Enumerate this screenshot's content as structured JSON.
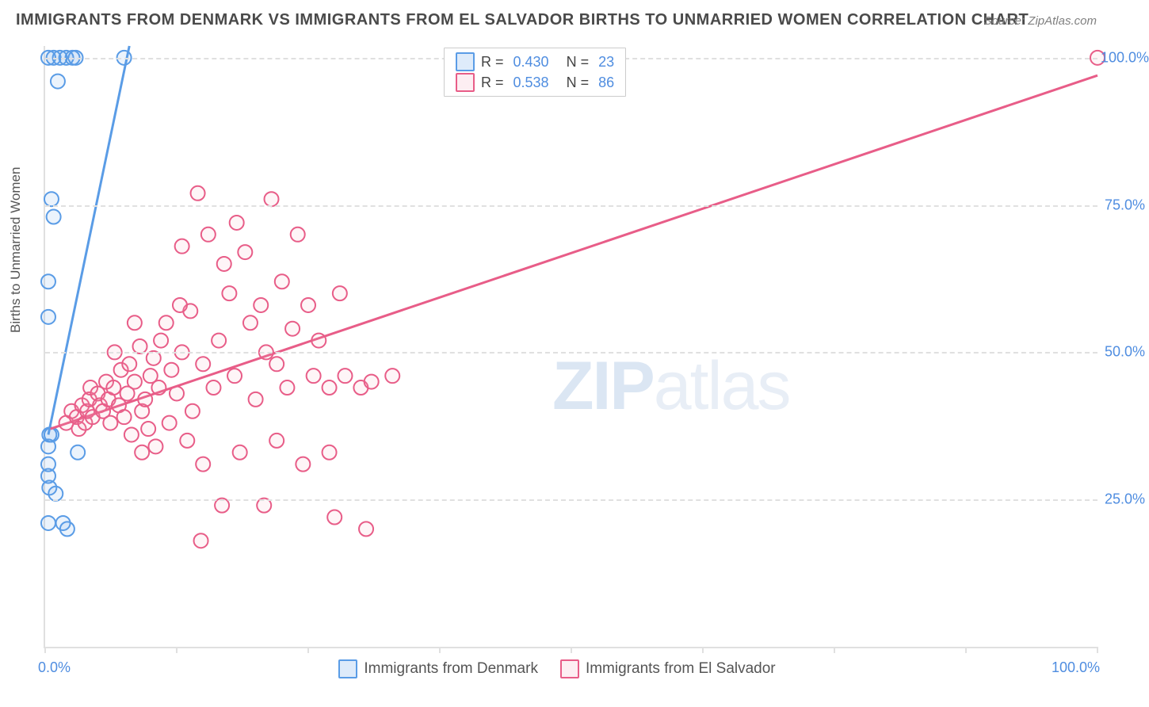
{
  "title": "IMMIGRANTS FROM DENMARK VS IMMIGRANTS FROM EL SALVADOR BIRTHS TO UNMARRIED WOMEN CORRELATION CHART",
  "source": "Source: ZipAtlas.com",
  "ylabel": "Births to Unmarried Women",
  "watermark_bold": "ZIP",
  "watermark_light": "atlas",
  "chart": {
    "type": "scatter",
    "xlim": [
      0,
      100
    ],
    "ylim": [
      0,
      102
    ],
    "xtick_positions": [
      0,
      12.5,
      25,
      37.5,
      50,
      62.5,
      75,
      87.5,
      100
    ],
    "ytick_labels": [
      {
        "v": 25,
        "t": "25.0%"
      },
      {
        "v": 50,
        "t": "50.0%"
      },
      {
        "v": 75,
        "t": "75.0%"
      },
      {
        "v": 100,
        "t": "100.0%"
      }
    ],
    "xaxis_label_min": "0.0%",
    "xaxis_label_max": "100.0%",
    "grid_color": "#e0e0e0",
    "background_color": "#ffffff",
    "marker_radius": 9,
    "series": [
      {
        "name": "Immigrants from Denmark",
        "color_stroke": "#5a9ce6",
        "color_fill": "#5a9ce6",
        "R": "0.430",
        "N": "23",
        "trend": {
          "x1": 0.3,
          "y1": 36,
          "x2": 8.0,
          "y2": 102
        },
        "points": [
          [
            0.3,
            100
          ],
          [
            0.8,
            100
          ],
          [
            1.4,
            100
          ],
          [
            2.0,
            100
          ],
          [
            2.6,
            100
          ],
          [
            2.9,
            100
          ],
          [
            7.5,
            100
          ],
          [
            1.2,
            96
          ],
          [
            0.6,
            76
          ],
          [
            0.8,
            73
          ],
          [
            0.3,
            62
          ],
          [
            0.3,
            56
          ],
          [
            0.4,
            36
          ],
          [
            0.3,
            34
          ],
          [
            3.1,
            33
          ],
          [
            0.3,
            31
          ],
          [
            0.3,
            29
          ],
          [
            0.4,
            27
          ],
          [
            1.0,
            26
          ],
          [
            0.3,
            21
          ],
          [
            1.7,
            21
          ],
          [
            2.1,
            20
          ],
          [
            0.6,
            36
          ]
        ]
      },
      {
        "name": "Immigrants from El Salvador",
        "color_stroke": "#e85d88",
        "color_fill": "#f6a9bf",
        "R": "0.538",
        "N": "86",
        "trend": {
          "x1": 0.5,
          "y1": 37,
          "x2": 100,
          "y2": 97
        },
        "points": [
          [
            100,
            100
          ],
          [
            2,
            38
          ],
          [
            2.5,
            40
          ],
          [
            3,
            39
          ],
          [
            3.2,
            37
          ],
          [
            3.5,
            41
          ],
          [
            3.8,
            38
          ],
          [
            4,
            40
          ],
          [
            4.2,
            42
          ],
          [
            4.3,
            44
          ],
          [
            4.5,
            39
          ],
          [
            5,
            43
          ],
          [
            5.2,
            41
          ],
          [
            5.5,
            40
          ],
          [
            5.8,
            45
          ],
          [
            6,
            42
          ],
          [
            6.2,
            38
          ],
          [
            6.5,
            44
          ],
          [
            6.6,
            50
          ],
          [
            7,
            41
          ],
          [
            7.2,
            47
          ],
          [
            7.5,
            39
          ],
          [
            7.8,
            43
          ],
          [
            8,
            48
          ],
          [
            8.2,
            36
          ],
          [
            8.5,
            45
          ],
          [
            9,
            51
          ],
          [
            9.2,
            40
          ],
          [
            9.5,
            42
          ],
          [
            9.8,
            37
          ],
          [
            10,
            46
          ],
          [
            10.3,
            49
          ],
          [
            10.5,
            34
          ],
          [
            10.8,
            44
          ],
          [
            11,
            52
          ],
          [
            11.5,
            55
          ],
          [
            11.8,
            38
          ],
          [
            12,
            47
          ],
          [
            12.5,
            43
          ],
          [
            13,
            68
          ],
          [
            13,
            50
          ],
          [
            13.5,
            35
          ],
          [
            13.8,
            57
          ],
          [
            14,
            40
          ],
          [
            14.5,
            77
          ],
          [
            15,
            48
          ],
          [
            15,
            31
          ],
          [
            15.5,
            70
          ],
          [
            16,
            44
          ],
          [
            16.5,
            52
          ],
          [
            16.8,
            24
          ],
          [
            17,
            65
          ],
          [
            17.5,
            60
          ],
          [
            18,
            46
          ],
          [
            18.2,
            72
          ],
          [
            18.5,
            33
          ],
          [
            19,
            67
          ],
          [
            19.5,
            55
          ],
          [
            20,
            42
          ],
          [
            20.5,
            58
          ],
          [
            20.8,
            24
          ],
          [
            21,
            50
          ],
          [
            21.5,
            76
          ],
          [
            22,
            48
          ],
          [
            22,
            35
          ],
          [
            22.5,
            62
          ],
          [
            23,
            44
          ],
          [
            23.5,
            54
          ],
          [
            24,
            70
          ],
          [
            24.5,
            31
          ],
          [
            25,
            58
          ],
          [
            25.5,
            46
          ],
          [
            26,
            52
          ],
          [
            27,
            44
          ],
          [
            27.5,
            22
          ],
          [
            28,
            60
          ],
          [
            28.5,
            46
          ],
          [
            30,
            44
          ],
          [
            30.5,
            20
          ],
          [
            31,
            45
          ],
          [
            27,
            33
          ],
          [
            33,
            46
          ],
          [
            12.8,
            58
          ],
          [
            14.8,
            18
          ],
          [
            8.5,
            55
          ],
          [
            9.2,
            33
          ]
        ]
      }
    ],
    "legend_bottom_order": [
      0,
      1
    ]
  }
}
